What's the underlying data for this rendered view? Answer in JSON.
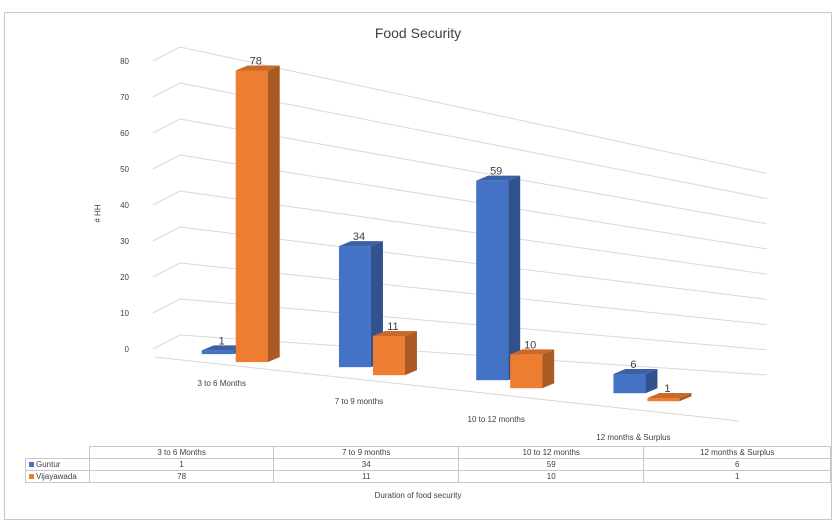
{
  "chart_data": {
    "type": "bar",
    "title": "Food Security",
    "xlabel": "Duration of food security",
    "ylabel": "# HH",
    "ylim": [
      0,
      80
    ],
    "yticks": [
      0,
      10,
      20,
      30,
      40,
      50,
      60,
      70,
      80
    ],
    "categories": [
      "3 to 6 Months",
      "7 to 9 months",
      "10 to 12 months",
      "12 months & Surplus"
    ],
    "series": [
      {
        "name": "Guntur",
        "values": [
          1,
          34,
          59,
          6
        ],
        "color": "#4472C4"
      },
      {
        "name": "Vijayawada",
        "values": [
          78,
          11,
          10,
          1
        ],
        "color": "#ED7D31"
      }
    ],
    "grid": true,
    "legend": "data-table",
    "style": "3d-column"
  }
}
